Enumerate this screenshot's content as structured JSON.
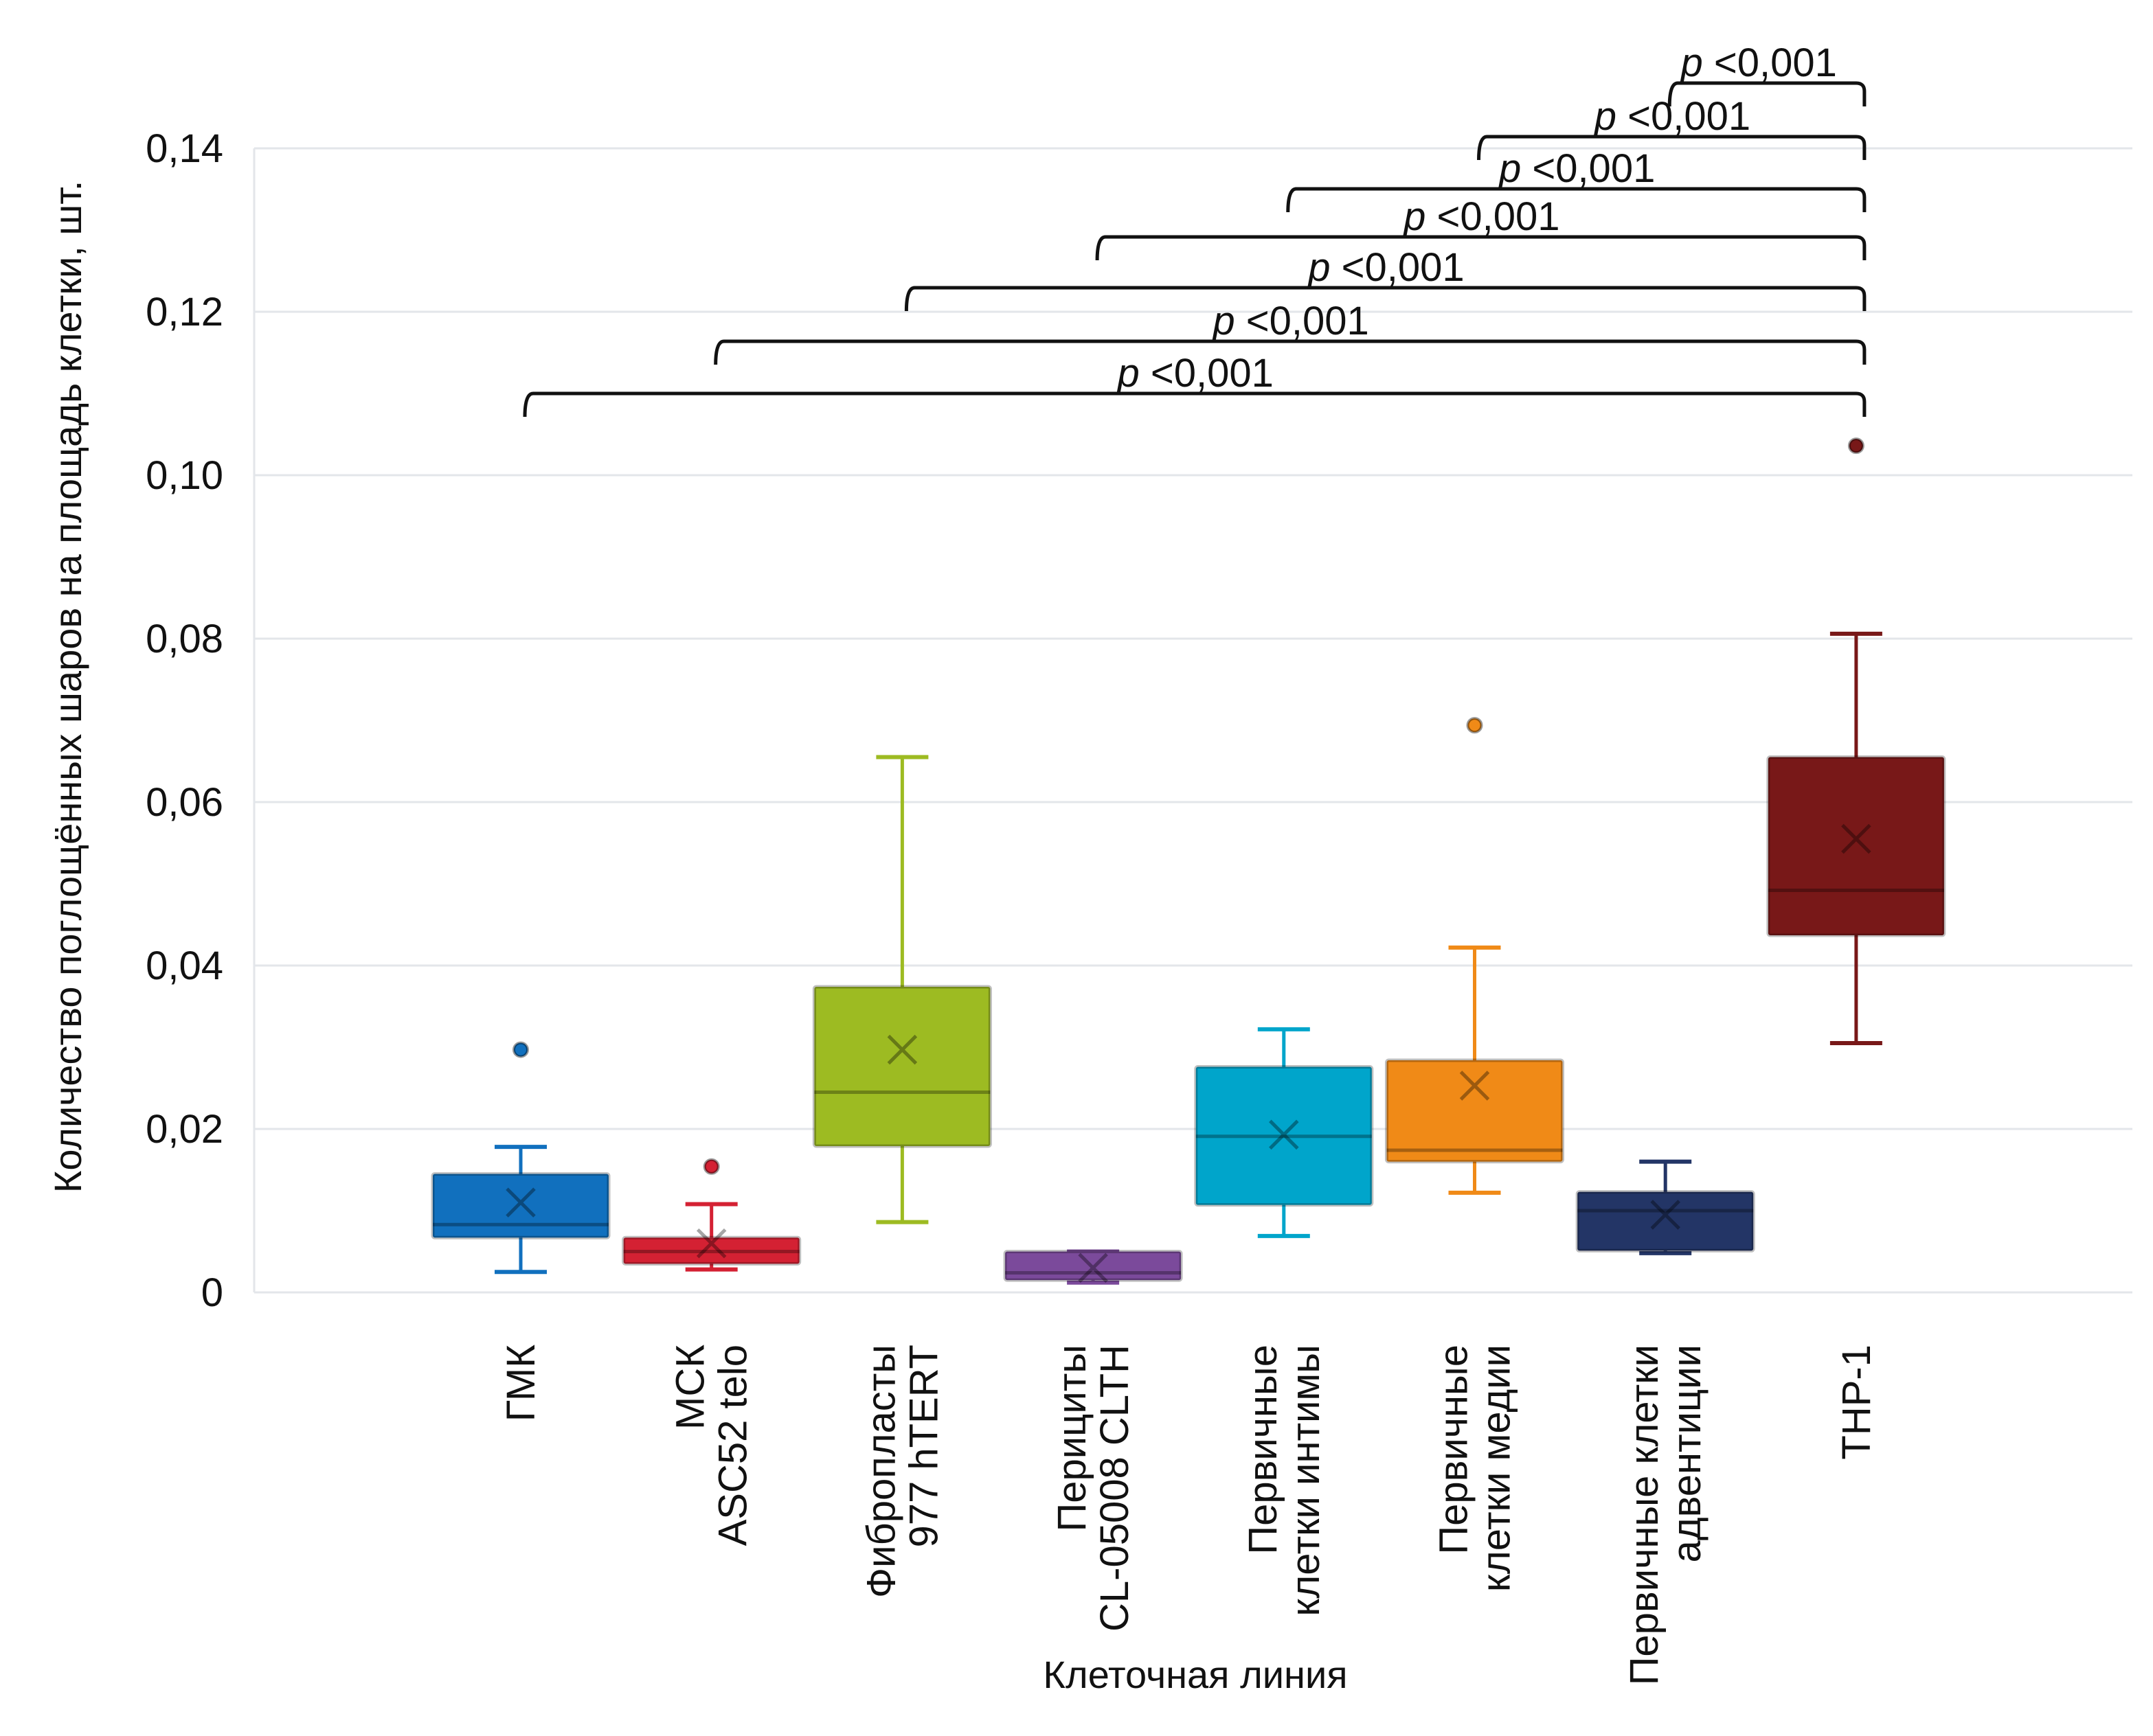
{
  "chart_data": {
    "type": "box",
    "title": "",
    "xlabel": "Клеточная линия",
    "ylabel": "Количество поглощённых шаров на площадь клетки, шт.",
    "ylim": [
      0,
      0.14
    ],
    "yticks": [
      "0",
      "0,02",
      "0,04",
      "0,06",
      "0,08",
      "0,10",
      "0,12",
      "0,14"
    ],
    "ytick_values": [
      0,
      0.02,
      0.04,
      0.06,
      0.08,
      0.1,
      0.12,
      0.14
    ],
    "grid": true,
    "categories": [
      [
        "ГМК"
      ],
      [
        "МСК",
        "ASC52 telo"
      ],
      [
        "Фибропласты",
        "977 hTERT"
      ],
      [
        "Перициты",
        "CL-05008 CLTH"
      ],
      [
        "Первичные",
        "клетки интимы"
      ],
      [
        "Первичные",
        "клетки медии"
      ],
      [
        "Первичные клетки",
        "адвентиции"
      ],
      [
        "THP-1"
      ]
    ],
    "series": [
      {
        "name": "ГМК",
        "color": "#1170be",
        "whisker_low": 0.0025,
        "q1": 0.0067,
        "median": 0.0083,
        "q3": 0.0145,
        "whisker_high": 0.0178,
        "mean": 0.011,
        "outliers": [
          0.0297
        ]
      },
      {
        "name": "МСК ASC52 telo",
        "color": "#d42133",
        "whisker_low": 0.0028,
        "q1": 0.0035,
        "median": 0.005,
        "q3": 0.0067,
        "whisker_high": 0.0108,
        "mean": 0.006,
        "outliers": [
          0.0154
        ]
      },
      {
        "name": "Фибропласты 977 hTERT",
        "color": "#9dbb22",
        "whisker_low": 0.0086,
        "q1": 0.0179,
        "median": 0.0245,
        "q3": 0.0374,
        "whisker_high": 0.0655,
        "mean": 0.0297,
        "outliers": []
      },
      {
        "name": "Перициты CL-05008 CLTH",
        "color": "#7b4a9b",
        "whisker_low": 0.0012,
        "q1": 0.0015,
        "median": 0.0024,
        "q3": 0.005,
        "whisker_high": 0.005,
        "mean": 0.003,
        "outliers": []
      },
      {
        "name": "Первичные клетки интимы",
        "color": "#00a5cb",
        "whisker_low": 0.0069,
        "q1": 0.0107,
        "median": 0.0191,
        "q3": 0.0276,
        "whisker_high": 0.0322,
        "mean": 0.0193,
        "outliers": []
      },
      {
        "name": "Первичные клетки медии",
        "color": "#f08a17",
        "whisker_low": 0.0122,
        "q1": 0.016,
        "median": 0.0174,
        "q3": 0.0284,
        "whisker_high": 0.0422,
        "mean": 0.0253,
        "outliers": [
          0.0694
        ]
      },
      {
        "name": "Первичные клетки адвентиции",
        "color": "#233566",
        "whisker_low": 0.0048,
        "q1": 0.0051,
        "median": 0.01,
        "q3": 0.0123,
        "whisker_high": 0.016,
        "mean": 0.0095,
        "outliers": []
      },
      {
        "name": "THP-1",
        "color": "#781818",
        "whisker_low": 0.0305,
        "q1": 0.0437,
        "median": 0.0492,
        "q3": 0.0655,
        "whisker_high": 0.0806,
        "mean": 0.0555,
        "outliers": [
          0.1036
        ]
      }
    ],
    "comparisons": [
      {
        "from": 0,
        "to": 7,
        "label_p": "p",
        "label_rest": " <0,001"
      },
      {
        "from": 1,
        "to": 7,
        "label_p": "p",
        "label_rest": " <0,001"
      },
      {
        "from": 2,
        "to": 7,
        "label_p": "p",
        "label_rest": " <0,001"
      },
      {
        "from": 3,
        "to": 7,
        "label_p": "p",
        "label_rest": " <0,001"
      },
      {
        "from": 4,
        "to": 7,
        "label_p": "p",
        "label_rest": " <0,001"
      },
      {
        "from": 5,
        "to": 7,
        "label_p": "p",
        "label_rest": " <0,001"
      },
      {
        "from": 6,
        "to": 7,
        "label_p": "p",
        "label_rest": " <0,001"
      }
    ]
  }
}
